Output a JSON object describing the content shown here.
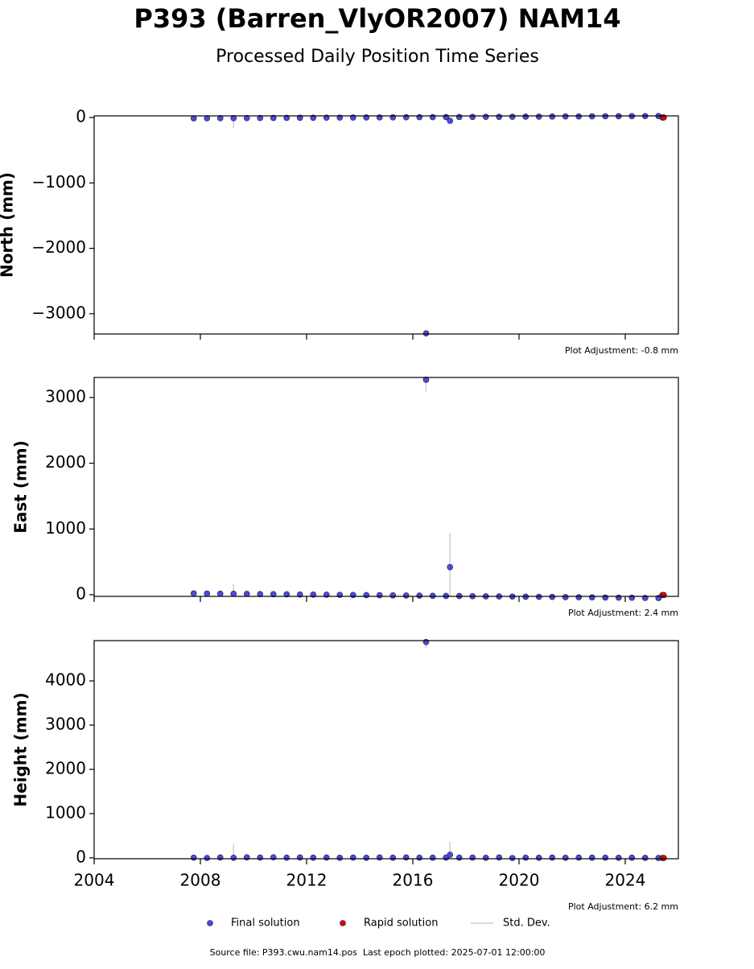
{
  "header": {
    "title": "P393 (Barren_VlyOR2007) NAM14",
    "subtitle": "Processed Daily Position Time Series"
  },
  "legend": {
    "error_label": "Std. Dev."
  },
  "footer": {
    "source": "Source file: P393.cwu.nam14.pos  Last epoch plotted: 2025-07-01 12:00:00"
  },
  "chart_data": [
    {
      "type": "scatter",
      "ylabel": "North (mm)",
      "annotation": "Plot Adjustment: -0.8 mm",
      "xlim": [
        2004,
        2026
      ],
      "xticks": [
        2004,
        2008,
        2012,
        2016,
        2020,
        2024
      ],
      "show_xtick_labels": false,
      "ylim": [
        -3310,
        25
      ],
      "yticks": [
        {
          "value": -3000,
          "label": "−3000"
        },
        {
          "value": -2000,
          "label": "−2000"
        },
        {
          "value": -1000,
          "label": "−1000"
        },
        0
      ],
      "series": [
        {
          "name": "Final solution",
          "color": "#4b4bdc",
          "x": [
            2007.75,
            2008.25,
            2008.75,
            2009.25,
            2009.75,
            2010.25,
            2010.75,
            2011.25,
            2011.75,
            2012.25,
            2012.75,
            2013.25,
            2013.75,
            2014.25,
            2014.75,
            2015.25,
            2015.75,
            2016.25,
            2016.5,
            2016.75,
            2017.25,
            2017.4,
            2017.75,
            2018.25,
            2018.75,
            2019.25,
            2019.75,
            2020.25,
            2020.75,
            2021.25,
            2021.75,
            2022.25,
            2022.75,
            2023.25,
            2023.75,
            2024.25,
            2024.75,
            2025.25
          ],
          "values": [
            -12,
            -11,
            -10,
            -9,
            -8,
            -7,
            -6,
            -5,
            -4,
            -3,
            -2,
            -1,
            0,
            1,
            2,
            3,
            4,
            5,
            -3300,
            6,
            7,
            -50,
            8,
            9,
            10,
            11,
            12,
            13,
            14,
            15,
            16,
            17,
            18,
            19,
            20,
            21,
            22,
            23
          ],
          "errors": [
            5,
            5,
            5,
            150,
            5,
            5,
            5,
            5,
            5,
            5,
            5,
            5,
            5,
            5,
            5,
            5,
            5,
            5,
            20,
            5,
            5,
            20,
            5,
            5,
            5,
            5,
            5,
            5,
            5,
            5,
            5,
            5,
            5,
            5,
            5,
            5,
            5,
            5
          ]
        },
        {
          "name": "Rapid solution",
          "color": "#dd0000",
          "x": [
            2025.4,
            2025.45
          ],
          "values": [
            0,
            1
          ]
        }
      ]
    },
    {
      "type": "scatter",
      "ylabel": "East (mm)",
      "annotation": "Plot Adjustment: 2.4 mm",
      "xlim": [
        2004,
        2026
      ],
      "xticks": [
        2004,
        2008,
        2012,
        2016,
        2020,
        2024
      ],
      "show_xtick_labels": false,
      "ylim": [
        -25,
        3305
      ],
      "yticks": [
        0,
        1000,
        2000,
        3000
      ],
      "series": [
        {
          "name": "Final solution",
          "color": "#4b4bdc",
          "x": [
            2007.75,
            2008.25,
            2008.75,
            2009.25,
            2009.75,
            2010.25,
            2010.75,
            2011.25,
            2011.75,
            2012.25,
            2012.75,
            2013.25,
            2013.75,
            2014.25,
            2014.75,
            2015.25,
            2015.75,
            2016.25,
            2016.5,
            2016.75,
            2017.25,
            2017.4,
            2017.75,
            2018.25,
            2018.75,
            2019.25,
            2019.75,
            2020.25,
            2020.75,
            2021.25,
            2021.75,
            2022.25,
            2022.75,
            2023.25,
            2023.75,
            2024.25,
            2024.75,
            2025.25
          ],
          "values": [
            20,
            18,
            16,
            14,
            12,
            10,
            8,
            6,
            4,
            2,
            0,
            -2,
            -4,
            -6,
            -8,
            -10,
            -12,
            -14,
            3270,
            -16,
            -18,
            420,
            -20,
            -22,
            -24,
            -26,
            -28,
            -30,
            -32,
            -34,
            -36,
            -38,
            -40,
            -42,
            -44,
            -46,
            -48,
            -50
          ],
          "errors": [
            5,
            5,
            5,
            150,
            5,
            5,
            5,
            5,
            5,
            5,
            5,
            5,
            5,
            5,
            5,
            5,
            5,
            5,
            180,
            5,
            5,
            520,
            5,
            5,
            5,
            5,
            5,
            5,
            5,
            5,
            5,
            5,
            5,
            5,
            5,
            5,
            5,
            5
          ]
        },
        {
          "name": "Rapid solution",
          "color": "#dd0000",
          "x": [
            2025.4,
            2025.45
          ],
          "values": [
            -5,
            -4
          ]
        }
      ]
    },
    {
      "type": "scatter",
      "ylabel": "Height (mm)",
      "annotation": "Plot Adjustment: 6.2 mm",
      "xlim": [
        2004,
        2026
      ],
      "xticks": [
        2004,
        2008,
        2012,
        2016,
        2020,
        2024
      ],
      "show_xtick_labels": true,
      "ylim": [
        -20,
        4910
      ],
      "yticks": [
        0,
        1000,
        2000,
        3000,
        4000
      ],
      "series": [
        {
          "name": "Final solution",
          "color": "#4b4bdc",
          "x": [
            2007.75,
            2008.25,
            2008.75,
            2009.25,
            2009.75,
            2010.25,
            2010.75,
            2011.25,
            2011.75,
            2012.25,
            2012.75,
            2013.25,
            2013.75,
            2014.25,
            2014.75,
            2015.25,
            2015.75,
            2016.25,
            2016.5,
            2016.75,
            2017.25,
            2017.4,
            2017.75,
            2018.25,
            2018.75,
            2019.25,
            2019.75,
            2020.25,
            2020.75,
            2021.25,
            2021.75,
            2022.25,
            2022.75,
            2023.25,
            2023.75,
            2024.25,
            2024.75,
            2025.25
          ],
          "values": [
            5,
            -3,
            8,
            2,
            10,
            6,
            12,
            4,
            9,
            3,
            7,
            1,
            6,
            2,
            8,
            3,
            9,
            4,
            4880,
            5,
            7,
            70,
            3,
            6,
            2,
            8,
            -4,
            5,
            1,
            6,
            2,
            7,
            3,
            5,
            1,
            4,
            0,
            -2
          ],
          "errors": [
            8,
            8,
            8,
            300,
            8,
            8,
            8,
            8,
            8,
            8,
            8,
            8,
            8,
            8,
            8,
            8,
            8,
            8,
            150,
            8,
            8,
            300,
            8,
            8,
            8,
            8,
            8,
            8,
            8,
            8,
            8,
            8,
            8,
            8,
            8,
            8,
            8,
            8
          ]
        },
        {
          "name": "Rapid solution",
          "color": "#dd0000",
          "x": [
            2025.4,
            2025.45
          ],
          "values": [
            -3,
            -2
          ]
        }
      ]
    }
  ]
}
